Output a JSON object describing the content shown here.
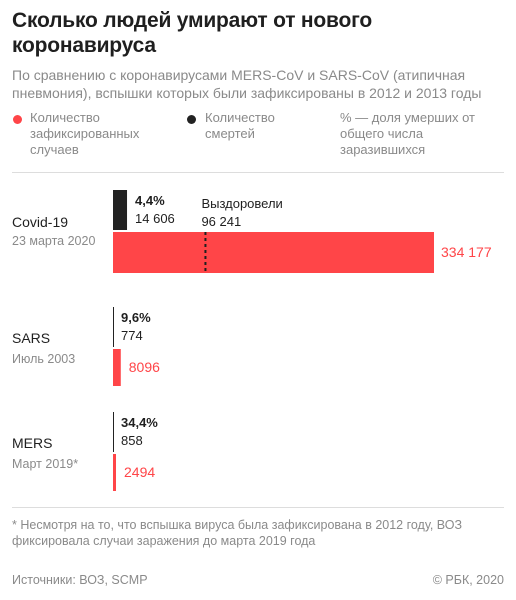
{
  "title": "Сколько людей умирают от нового коронавируса",
  "subtitle": "По сравнению с коронавирусами MERS-CoV и SARS-CoV (атипичная пневмония), вспышки которых были зафиксированы в 2012 и 2013 годы",
  "legend": {
    "cases": "Количество зафиксированных случаев",
    "deaths": "Количество смертей",
    "share": "% — доля умерших от общего числа заразившихся"
  },
  "colors": {
    "cases": "#ff4548",
    "deaths": "#222222",
    "text": "#1f1f1f",
    "muted": "#8a8a8a"
  },
  "chart_data": {
    "type": "bar",
    "orientation": "horizontal",
    "categories": [
      "Covid-19",
      "SARS",
      "MERS"
    ],
    "dates": [
      "23 марта 2020",
      "Июль 2003",
      "Март 2019*"
    ],
    "series": [
      {
        "name": "Количество зафиксированных случаев",
        "values": [
          334177,
          8096,
          2494
        ],
        "labels": [
          "334 177",
          "8096",
          "2494"
        ]
      },
      {
        "name": "Количество смертей",
        "values": [
          14606,
          774,
          858
        ],
        "labels": [
          "14 606",
          "774",
          "858"
        ]
      }
    ],
    "death_share": [
      "4,4%",
      "9,6%",
      "34,4%"
    ],
    "recovered": {
      "category": "Covid-19",
      "label": "Выздоровели",
      "value": 96241,
      "value_label": "96 241"
    }
  },
  "footnote": "* Несмотря на то, что вспышка вируса была зафиксирована в 2012 году, ВОЗ фиксировала случаи заражения до марта 2019 года",
  "sources": "Источники: ВОЗ, SCMP",
  "copyright": "© РБК, 2020"
}
